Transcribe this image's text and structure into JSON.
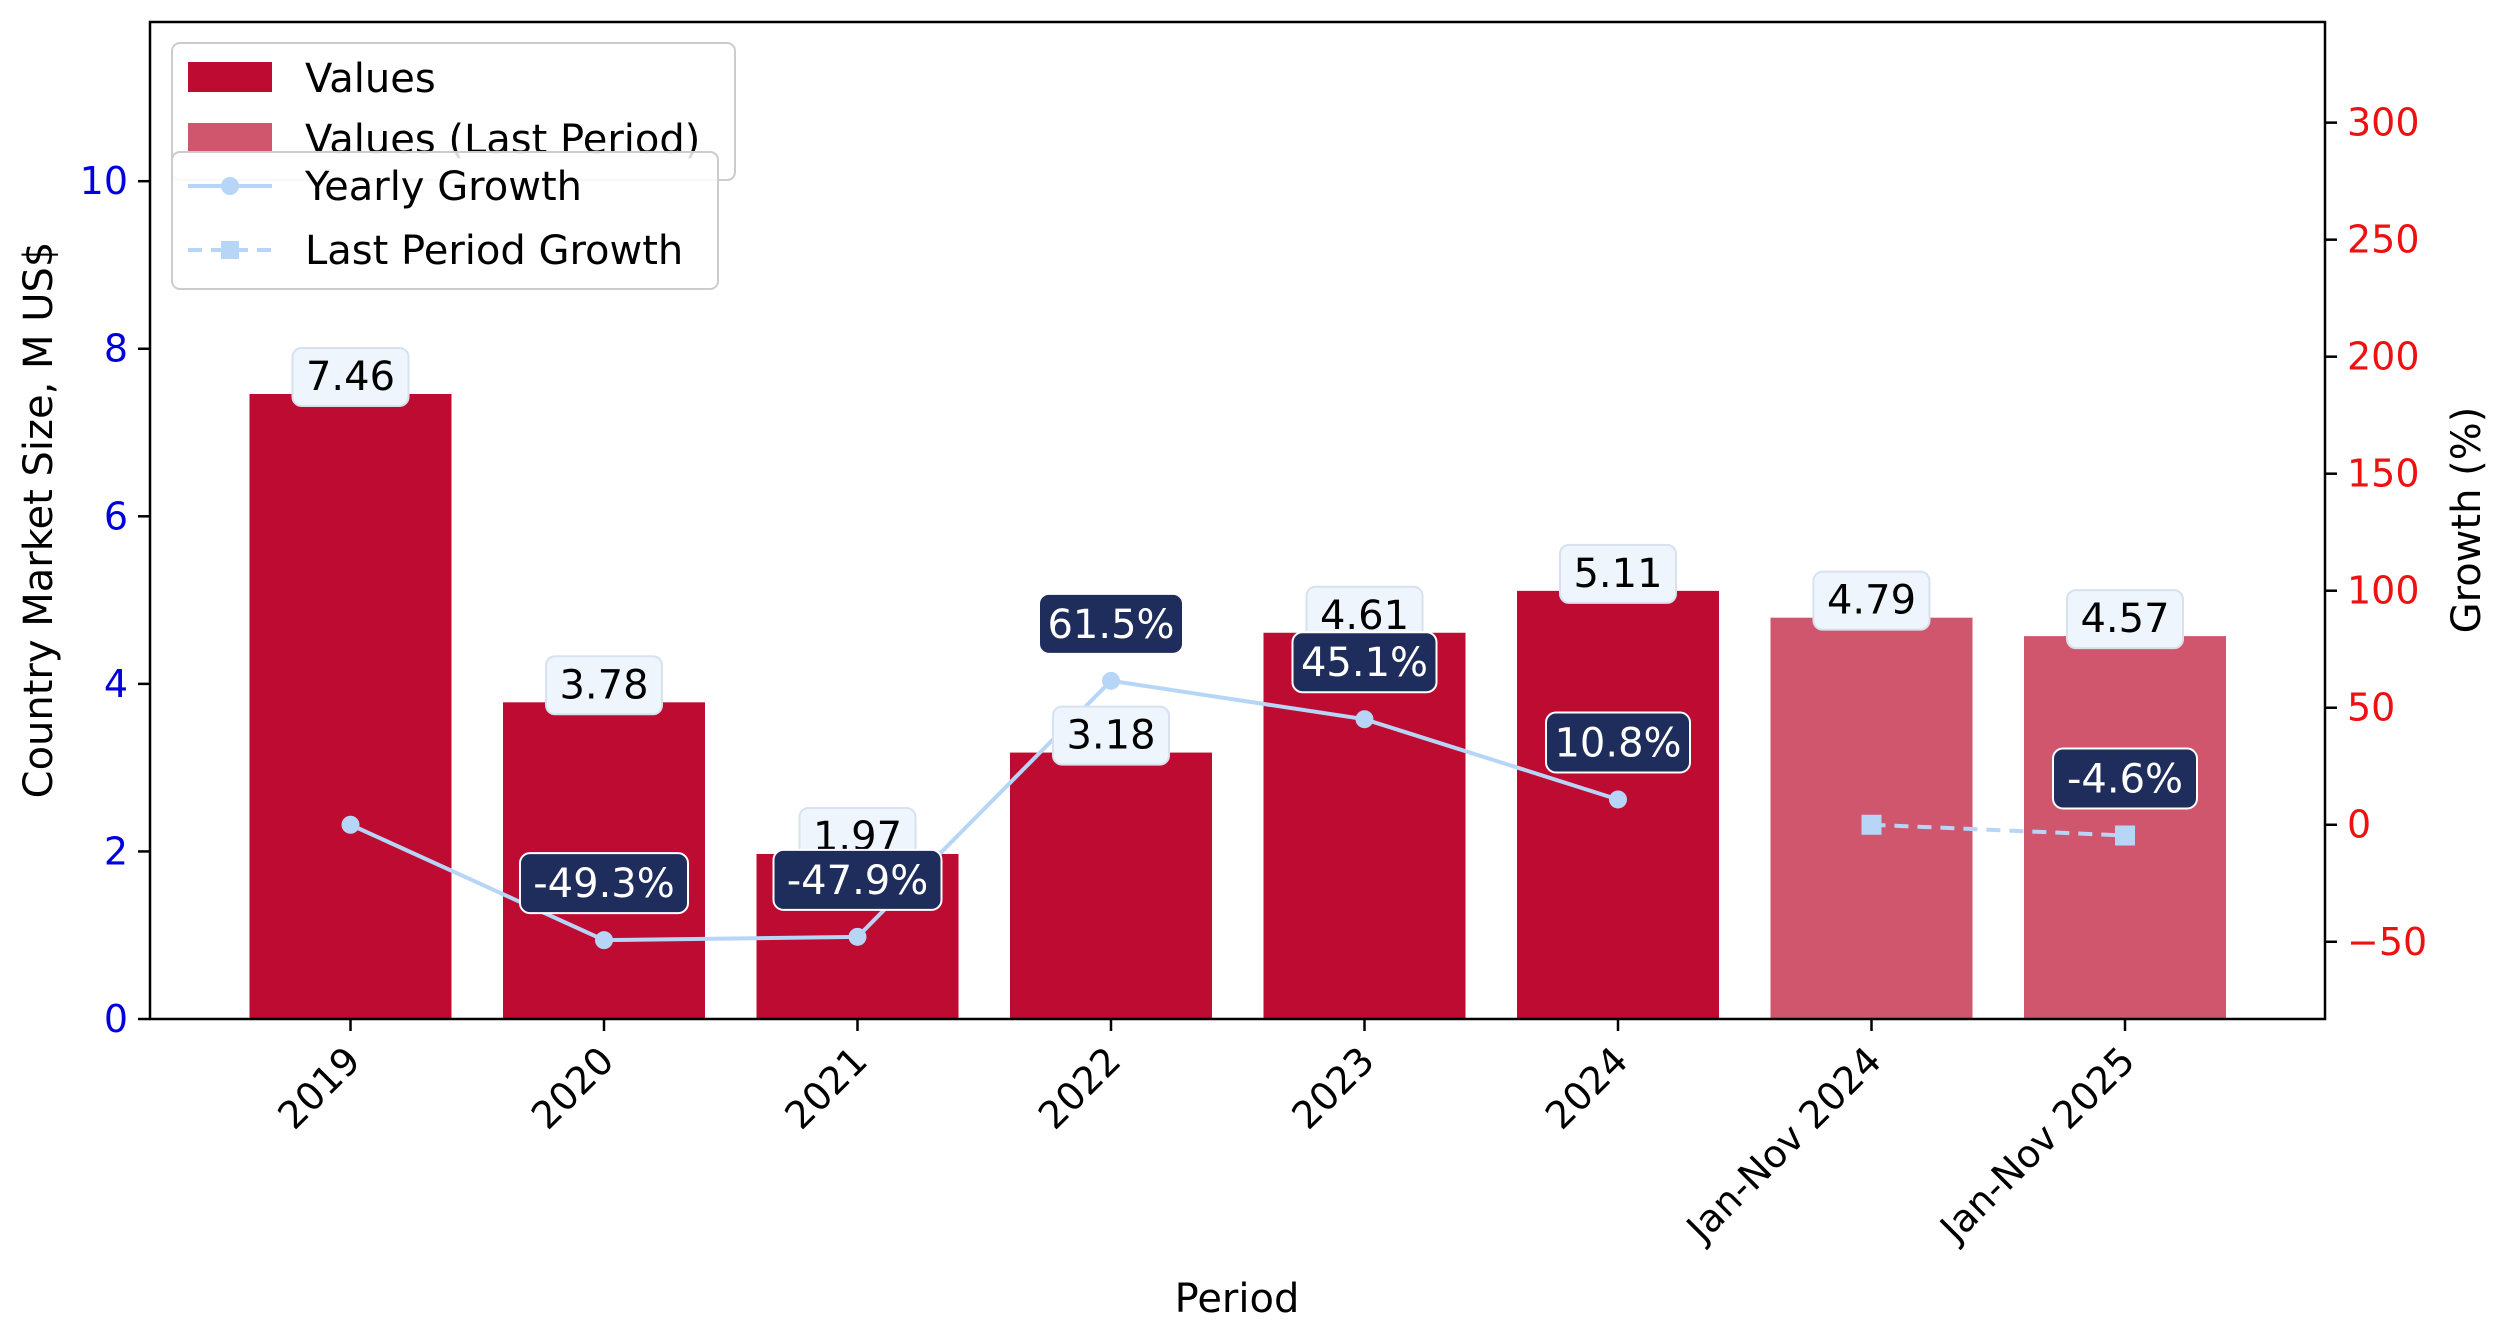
{
  "chart_data": {
    "type": "bar",
    "categories": [
      "2019",
      "2020",
      "2021",
      "2022",
      "2023",
      "2024",
      "Jan-Nov 2024",
      "Jan-Nov 2025"
    ],
    "values": [
      7.46,
      3.78,
      1.97,
      3.18,
      4.61,
      5.11,
      4.79,
      4.57
    ],
    "value_labels": [
      "7.46",
      "3.78",
      "1.97",
      "3.18",
      "4.61",
      "5.11",
      "4.79",
      "4.57"
    ],
    "last_period_flags": [
      false,
      false,
      false,
      false,
      false,
      false,
      true,
      true
    ],
    "series": [
      {
        "name": "Values",
        "type": "bar",
        "color": "#be0b31"
      },
      {
        "name": "Values (Last Period)",
        "type": "bar",
        "color": "#d0566e"
      },
      {
        "name": "Yearly Growth",
        "type": "line",
        "color": "#b7d6f7",
        "points": [
          [
            0,
            0
          ],
          [
            1,
            -49.3
          ],
          [
            2,
            -47.9
          ],
          [
            3,
            61.5
          ],
          [
            4,
            45.1
          ],
          [
            5,
            10.8
          ]
        ],
        "labels": [
          null,
          "-49.3%",
          "-47.9%",
          "61.5%",
          "45.1%",
          "10.8%"
        ]
      },
      {
        "name": "Last Period Growth",
        "type": "line",
        "dashed": true,
        "color": "#b7d6f7",
        "points": [
          [
            6,
            0
          ],
          [
            7,
            -4.6
          ]
        ],
        "labels": [
          null,
          "-4.6%"
        ]
      }
    ],
    "xlabel": "Period",
    "ylabel": "Country Market Size, M US$",
    "y2label": "Growth (%)",
    "ylim": [
      0,
      11.9
    ],
    "y2lim": [
      -83,
      343
    ],
    "yticks": [
      0,
      2,
      4,
      6,
      8,
      10
    ],
    "y2ticks": [
      -50,
      0,
      50,
      100,
      150,
      200,
      250,
      300
    ],
    "grid": false,
    "legend_placement": "top-left",
    "colors": {
      "left_axis": "#0000dd",
      "right_axis": "#ee1111",
      "growth_label_bg": "#1f2d5c",
      "value_label_bg": "#eef5fc"
    }
  }
}
